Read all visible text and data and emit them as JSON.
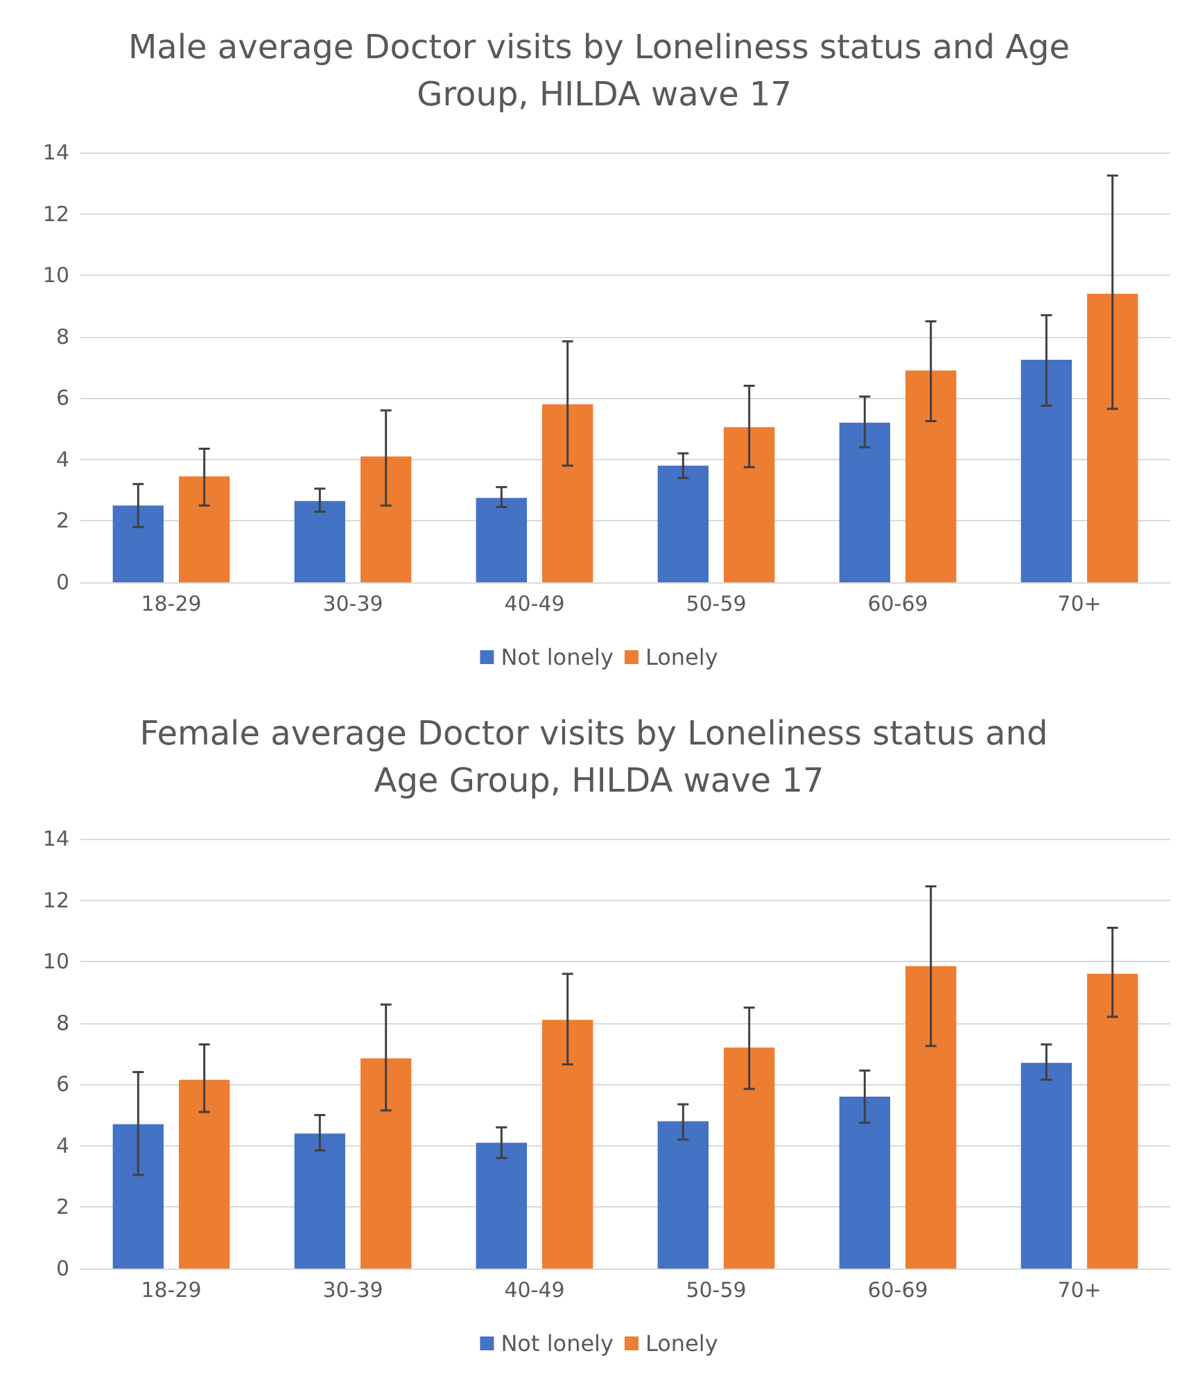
{
  "chart_data": [
    {
      "type": "bar",
      "title": "Male average Doctor visits by Loneliness status and Age Group, HILDA wave 17",
      "categories": [
        "18-29",
        "30-39",
        "40-49",
        "50-59",
        "60-69",
        "70+"
      ],
      "series": [
        {
          "name": "Not lonely",
          "color": "#4472c4",
          "values": [
            2.5,
            2.65,
            2.75,
            3.8,
            5.2,
            7.25
          ],
          "errors": [
            [
              1.8,
              3.2
            ],
            [
              2.3,
              3.05
            ],
            [
              2.45,
              3.1
            ],
            [
              3.4,
              4.2
            ],
            [
              4.4,
              6.05
            ],
            [
              5.75,
              8.7
            ]
          ]
        },
        {
          "name": "Lonely",
          "color": "#ed7d31",
          "values": [
            3.45,
            4.1,
            5.8,
            5.05,
            6.9,
            9.4
          ],
          "errors": [
            [
              2.5,
              4.35
            ],
            [
              2.5,
              5.6
            ],
            [
              3.8,
              7.85
            ],
            [
              3.75,
              6.4
            ],
            [
              5.25,
              8.5
            ],
            [
              5.65,
              13.25
            ]
          ]
        }
      ],
      "ylim": [
        0,
        14
      ],
      "yticks": [
        0,
        2,
        4,
        6,
        8,
        10,
        12,
        14
      ],
      "grid": "y",
      "legend": "bottom"
    },
    {
      "type": "bar",
      "title": "Female average Doctor visits by Loneliness status and Age Group, HILDA wave 17",
      "categories": [
        "18-29",
        "30-39",
        "40-49",
        "50-59",
        "60-69",
        "70+"
      ],
      "series": [
        {
          "name": "Not lonely",
          "color": "#4472c4",
          "values": [
            4.7,
            4.4,
            4.1,
            4.8,
            5.6,
            6.7
          ],
          "errors": [
            [
              3.05,
              6.4
            ],
            [
              3.85,
              5.0
            ],
            [
              3.6,
              4.6
            ],
            [
              4.2,
              5.35
            ],
            [
              4.75,
              6.45
            ],
            [
              6.15,
              7.3
            ]
          ]
        },
        {
          "name": "Lonely",
          "color": "#ed7d31",
          "values": [
            6.15,
            6.85,
            8.1,
            7.2,
            9.85,
            9.6
          ],
          "errors": [
            [
              5.1,
              7.3
            ],
            [
              5.15,
              8.6
            ],
            [
              6.65,
              9.6
            ],
            [
              5.85,
              8.5
            ],
            [
              7.25,
              12.45
            ],
            [
              8.2,
              11.1
            ]
          ]
        }
      ],
      "ylim": [
        0,
        14
      ],
      "yticks": [
        0,
        2,
        4,
        6,
        8,
        10,
        12,
        14
      ],
      "grid": "y",
      "legend": "bottom"
    }
  ]
}
